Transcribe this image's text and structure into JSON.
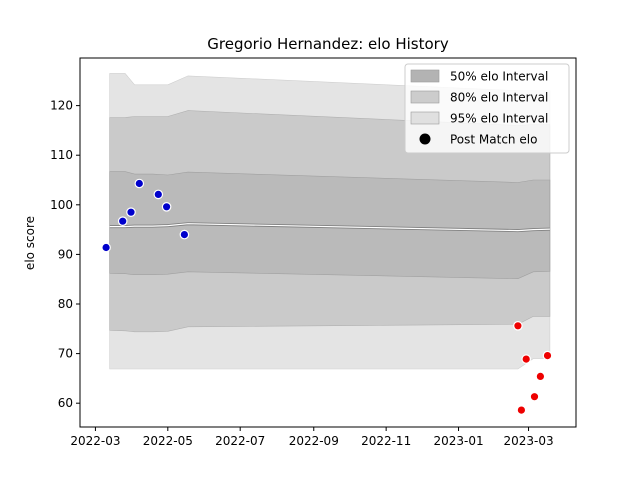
{
  "chart_data": {
    "type": "area",
    "title": "Gregorio Hernandez: elo History",
    "xlabel": "",
    "ylabel": "elo score",
    "xlim": [
      "2022-02-16",
      "2023-04-10"
    ],
    "ylim": [
      55.2,
      129.6
    ],
    "x_ticks": [
      "2022-03",
      "2022-05",
      "2022-07",
      "2022-09",
      "2022-11",
      "2023-01",
      "2023-03"
    ],
    "y_ticks": [
      60,
      70,
      80,
      90,
      100,
      110,
      120
    ],
    "legend_position": "top-right",
    "legend": [
      {
        "label": "50% elo Interval",
        "kind": "patch",
        "color": "#b3b3b3"
      },
      {
        "label": "80% elo Interval",
        "kind": "patch",
        "color": "#cccccc"
      },
      {
        "label": "95% elo Interval",
        "kind": "patch",
        "color": "#e0e0e0"
      },
      {
        "label": "Post Match elo",
        "kind": "marker",
        "color": "#000000"
      }
    ],
    "bands": {
      "x": [
        "2022-03-13",
        "2022-03-26",
        "2022-04-03",
        "2022-04-18",
        "2022-05-01",
        "2022-05-18",
        "2023-02-20",
        "2023-03-05",
        "2023-03-19"
      ],
      "mean": [
        95.6,
        95.6,
        95.7,
        95.7,
        95.8,
        96.2,
        94.8,
        95.0,
        95.1
      ],
      "p50_lo": [
        86.2,
        86.1,
        85.9,
        85.9,
        86.0,
        86.5,
        85.1,
        86.5,
        86.6
      ],
      "p50_hi": [
        106.7,
        106.7,
        106.2,
        106.2,
        106.0,
        106.6,
        104.5,
        105.0,
        105.0
      ],
      "p80_lo": [
        74.7,
        74.6,
        74.4,
        74.4,
        74.5,
        75.4,
        75.9,
        77.5,
        77.5
      ],
      "p80_hi": [
        117.6,
        117.6,
        117.8,
        117.8,
        117.8,
        119.0,
        116.0,
        116.2,
        116.2
      ],
      "p95_lo": [
        66.9,
        66.9,
        66.9,
        66.9,
        66.9,
        66.9,
        66.9,
        69.0,
        69.0
      ],
      "p95_hi": [
        126.5,
        126.5,
        124.2,
        124.2,
        124.2,
        126.0,
        123.0,
        123.0,
        123.0
      ]
    },
    "series": [
      {
        "color": "#0000cc",
        "points": [
          {
            "x": "2022-03-10",
            "y": 91.4
          },
          {
            "x": "2022-03-24",
            "y": 96.7
          },
          {
            "x": "2022-03-31",
            "y": 98.5
          },
          {
            "x": "2022-04-07",
            "y": 104.3
          },
          {
            "x": "2022-04-23",
            "y": 102.1
          },
          {
            "x": "2022-04-30",
            "y": 99.6
          },
          {
            "x": "2022-05-15",
            "y": 94.0
          }
        ]
      },
      {
        "color": "#ee0000",
        "points": [
          {
            "x": "2023-02-20",
            "y": 75.6
          },
          {
            "x": "2023-02-23",
            "y": 58.6
          },
          {
            "x": "2023-02-27",
            "y": 68.9
          },
          {
            "x": "2023-03-06",
            "y": 61.3
          },
          {
            "x": "2023-03-11",
            "y": 65.4
          },
          {
            "x": "2023-03-17",
            "y": 69.6
          }
        ]
      }
    ]
  }
}
